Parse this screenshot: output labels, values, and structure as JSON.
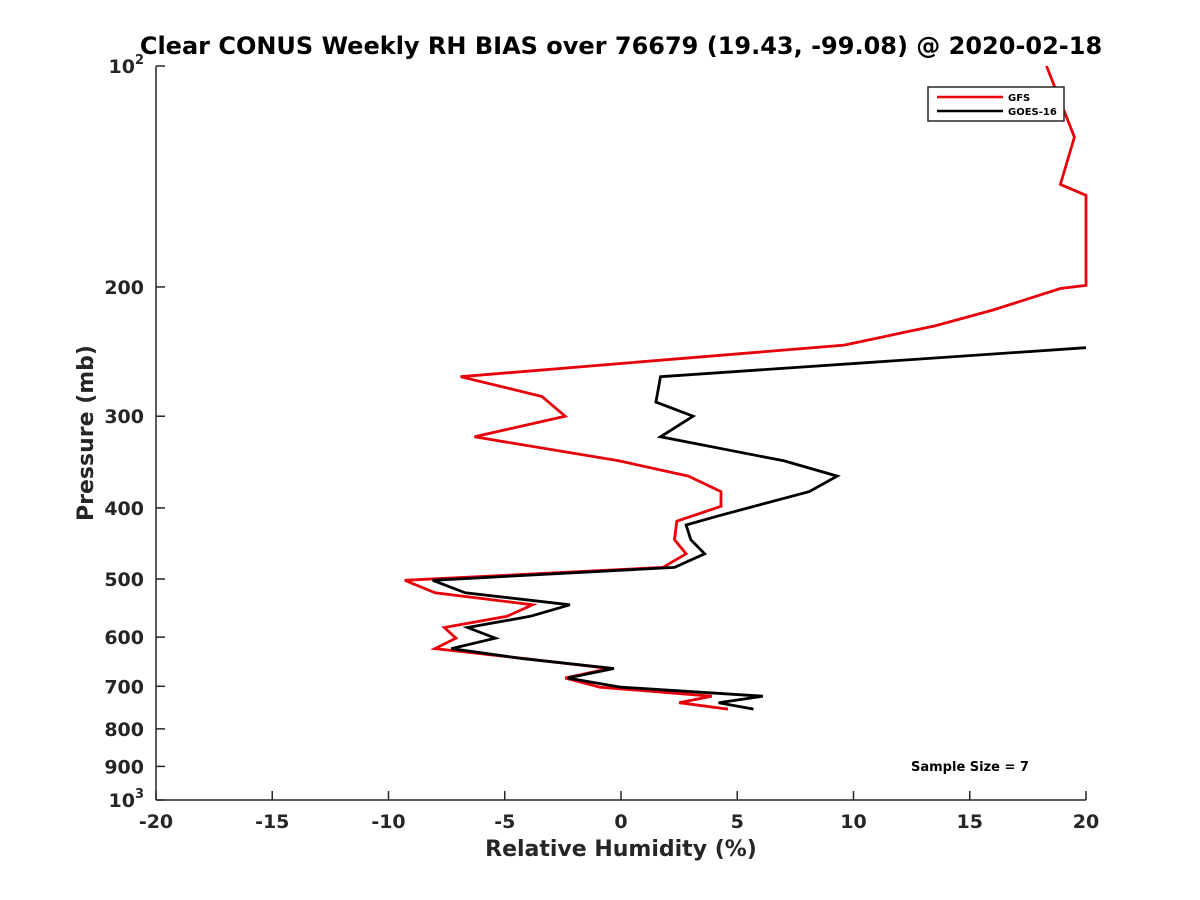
{
  "chart_data": {
    "type": "line",
    "title": "Clear CONUS Weekly RH BIAS over 76679 (19.43, -99.08) @ 2020-02-18",
    "xlabel": "Relative Humidity (%)",
    "ylabel": "Pressure (mb)",
    "xlim": [
      -20,
      20
    ],
    "ylim": [
      100,
      1000
    ],
    "y_scale": "log",
    "y_reversed": true,
    "grid": false,
    "legend_position": "top-right",
    "x_ticks": [
      -20,
      -15,
      -10,
      -5,
      0,
      5,
      10,
      15,
      20
    ],
    "x_tick_labels": [
      "-20",
      "-15",
      "-10",
      "-5",
      "0",
      "5",
      "10",
      "15",
      "20"
    ],
    "y_ticks": [
      {
        "value": 100,
        "base": "10",
        "exp": "2"
      },
      {
        "value": 200,
        "base": "200",
        "exp": ""
      },
      {
        "value": 300,
        "base": "300",
        "exp": ""
      },
      {
        "value": 400,
        "base": "400",
        "exp": ""
      },
      {
        "value": 500,
        "base": "500",
        "exp": ""
      },
      {
        "value": 600,
        "base": "600",
        "exp": ""
      },
      {
        "value": 700,
        "base": "700",
        "exp": ""
      },
      {
        "value": 800,
        "base": "800",
        "exp": ""
      },
      {
        "value": 900,
        "base": "900",
        "exp": ""
      },
      {
        "value": 1000,
        "base": "10",
        "exp": "3"
      }
    ],
    "annotation": "Sample Size = 7",
    "series": [
      {
        "name": "GFS",
        "color": "#e8000b",
        "points": [
          [
            18.3,
            100
          ],
          [
            19.5,
            125
          ],
          [
            18.9,
            145
          ],
          [
            20.0,
            150
          ],
          [
            20.0,
            199
          ],
          [
            18.9,
            201
          ],
          [
            16.0,
            215
          ],
          [
            13.5,
            226
          ],
          [
            9.6,
            240
          ],
          [
            -6.9,
            265
          ],
          [
            -3.4,
            282
          ],
          [
            -2.4,
            300
          ],
          [
            -6.3,
            320
          ],
          [
            -0.1,
            345
          ],
          [
            2.9,
            362
          ],
          [
            4.3,
            380
          ],
          [
            4.3,
            398
          ],
          [
            2.4,
            417
          ],
          [
            2.3,
            442
          ],
          [
            2.8,
            462
          ],
          [
            1.8,
            482
          ],
          [
            -9.3,
            502
          ],
          [
            -8.0,
            522
          ],
          [
            -3.8,
            542
          ],
          [
            -4.9,
            562
          ],
          [
            -7.6,
            582
          ],
          [
            -7.1,
            602
          ],
          [
            -8.0,
            622
          ],
          [
            -4.1,
            642
          ],
          [
            -0.5,
            662
          ],
          [
            -2.4,
            682
          ],
          [
            -0.9,
            702
          ],
          [
            3.9,
            722
          ],
          [
            2.5,
            737
          ],
          [
            4.6,
            752
          ]
        ]
      },
      {
        "name": "GOES-16",
        "color": "#000000",
        "points": [
          [
            20.0,
            242
          ],
          [
            1.7,
            265
          ],
          [
            1.5,
            287
          ],
          [
            3.1,
            300
          ],
          [
            1.7,
            320
          ],
          [
            7.0,
            345
          ],
          [
            9.3,
            362
          ],
          [
            8.1,
            380
          ],
          [
            4.2,
            410
          ],
          [
            2.8,
            422
          ],
          [
            3.0,
            442
          ],
          [
            3.6,
            462
          ],
          [
            2.3,
            482
          ],
          [
            -8.1,
            502
          ],
          [
            -6.7,
            522
          ],
          [
            -2.2,
            542
          ],
          [
            -3.9,
            562
          ],
          [
            -6.6,
            582
          ],
          [
            -5.4,
            602
          ],
          [
            -7.3,
            622
          ],
          [
            -4.2,
            642
          ],
          [
            -0.3,
            662
          ],
          [
            -2.3,
            682
          ],
          [
            0.0,
            702
          ],
          [
            6.1,
            722
          ],
          [
            4.2,
            737
          ],
          [
            5.7,
            752
          ]
        ]
      }
    ]
  }
}
